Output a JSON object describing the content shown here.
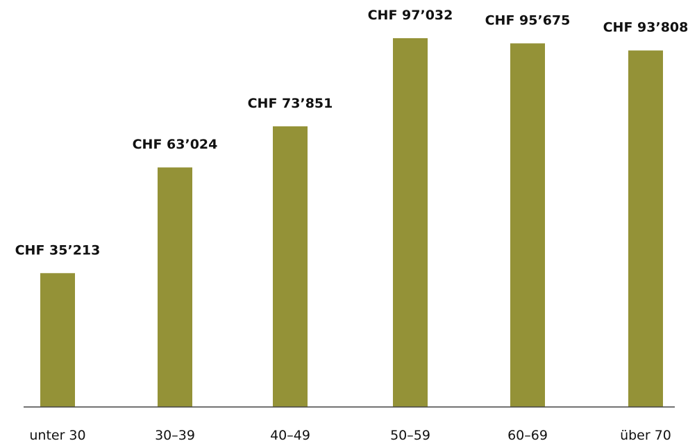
{
  "chart_data": {
    "type": "bar",
    "title": "",
    "xlabel": "",
    "ylabel": "",
    "categories": [
      "unter 30",
      "30–39",
      "40–49",
      "50–59",
      "60–69",
      "über 70"
    ],
    "values": [
      35213,
      63024,
      73851,
      97032,
      95675,
      93808
    ],
    "data_labels": [
      "CHF 35’213",
      "CHF 63’024",
      "CHF 73’851",
      "CHF 97’032",
      "CHF 95’675",
      "CHF 93’808"
    ],
    "ylim": [
      0,
      100000
    ],
    "grid": false,
    "legend": "none",
    "bar_color": "#949237",
    "axis_color": "#444444",
    "text_color": "#111111"
  }
}
